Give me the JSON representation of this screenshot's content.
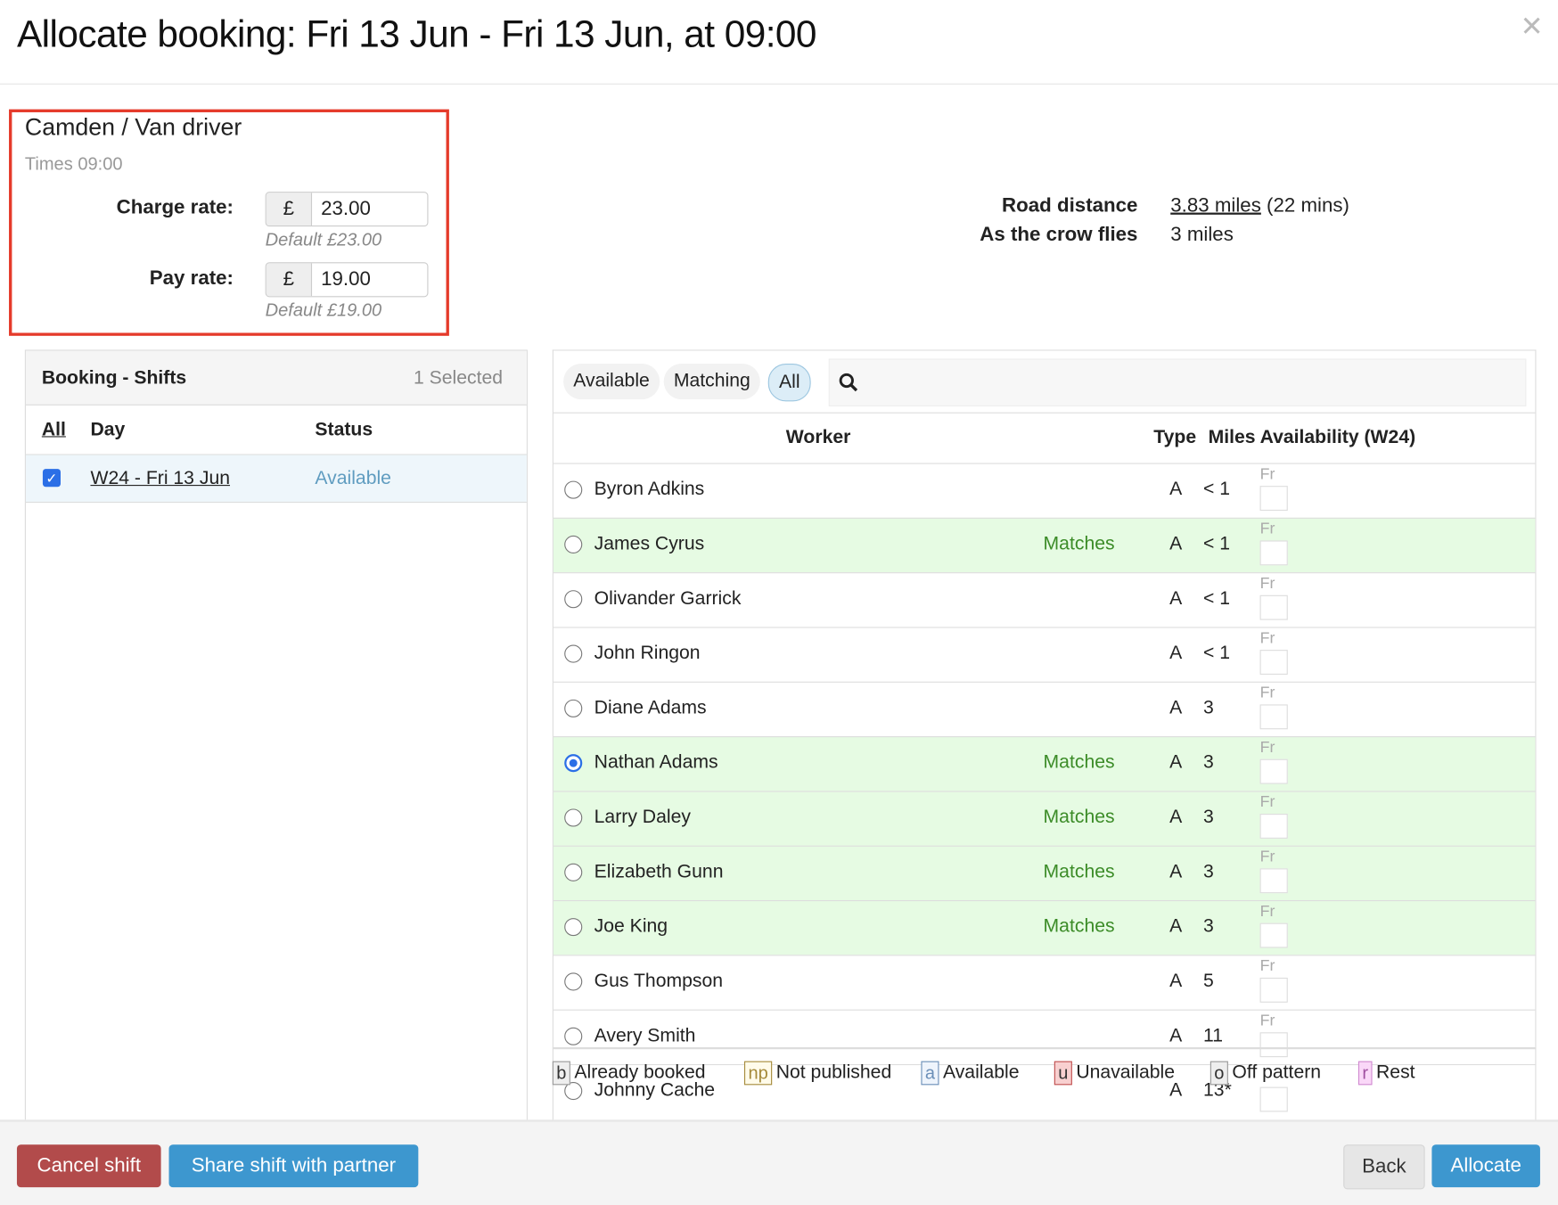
{
  "title": "Allocate booking: Fri 13 Jun - Fri 13 Jun, at 09:00",
  "close_icon": "times-icon",
  "job": {
    "name": "Camden / Van driver",
    "times": "Times 09:00",
    "charge": {
      "label": "Charge rate:",
      "currency": "£",
      "value": "23.00",
      "default": "Default £23.00"
    },
    "pay": {
      "label": "Pay rate:",
      "currency": "£",
      "value": "19.00",
      "default": "Default £19.00"
    }
  },
  "distance": {
    "road_label": "Road distance",
    "road_value": "3.83 miles",
    "road_time": "(22 mins)",
    "crow_label": "As the crow flies",
    "crow_value": "3 miles"
  },
  "shifts": {
    "title": "Booking - Shifts",
    "selected": "1 Selected",
    "col_all": "All",
    "col_day": "Day",
    "col_status": "Status",
    "rows": [
      {
        "day": "W24 - Fri 13 Jun",
        "status": "Available",
        "checked": true
      }
    ]
  },
  "filters": {
    "available": "Available",
    "matching": "Matching",
    "all": "All",
    "active": "All",
    "search_placeholder": "",
    "search_icon": "search-icon"
  },
  "workers_table": {
    "col_worker": "Worker",
    "col_type": "Type",
    "col_miles": "Miles",
    "col_availability": "Availability (W24)",
    "rows": [
      {
        "name": "Byron Adkins",
        "match": "",
        "type": "A",
        "miles": "< 1",
        "day": "Fr",
        "selected": false
      },
      {
        "name": "James Cyrus",
        "match": "Matches",
        "type": "A",
        "miles": "< 1",
        "day": "Fr",
        "selected": false
      },
      {
        "name": "Olivander Garrick",
        "match": "",
        "type": "A",
        "miles": "< 1",
        "day": "Fr",
        "selected": false
      },
      {
        "name": "John Ringon",
        "match": "",
        "type": "A",
        "miles": "< 1",
        "day": "Fr",
        "selected": false
      },
      {
        "name": "Diane Adams",
        "match": "",
        "type": "A",
        "miles": "3",
        "day": "Fr",
        "selected": false
      },
      {
        "name": "Nathan Adams",
        "match": "Matches",
        "type": "A",
        "miles": "3",
        "day": "Fr",
        "selected": true
      },
      {
        "name": "Larry Daley",
        "match": "Matches",
        "type": "A",
        "miles": "3",
        "day": "Fr",
        "selected": false
      },
      {
        "name": "Elizabeth Gunn",
        "match": "Matches",
        "type": "A",
        "miles": "3",
        "day": "Fr",
        "selected": false
      },
      {
        "name": "Joe King",
        "match": "Matches",
        "type": "A",
        "miles": "3",
        "day": "Fr",
        "selected": false
      },
      {
        "name": "Gus Thompson",
        "match": "",
        "type": "A",
        "miles": "5",
        "day": "Fr",
        "selected": false
      },
      {
        "name": "Avery Smith",
        "match": "",
        "type": "A",
        "miles": "11",
        "day": "Fr",
        "selected": false
      },
      {
        "name": "Johnny Cache",
        "match": "",
        "type": "A",
        "miles": "13*",
        "day": "",
        "selected": false
      }
    ]
  },
  "legend": [
    {
      "code": "b",
      "label": "Already booked",
      "bg": "#eeeeee",
      "border": "#999999",
      "color": "#333333"
    },
    {
      "code": "np",
      "label": "Not published",
      "bg": "#fffbea",
      "border": "#a58a3a",
      "color": "#a58a3a"
    },
    {
      "code": "a",
      "label": "Available",
      "bg": "#eef4fc",
      "border": "#6b8fb8",
      "color": "#6b8fb8"
    },
    {
      "code": "u",
      "label": "Unavailable",
      "bg": "#f8d0d0",
      "border": "#c05050",
      "color": "#333333"
    },
    {
      "code": "o",
      "label": "Off pattern",
      "bg": "#eeeeee",
      "border": "#999999",
      "color": "#333333"
    },
    {
      "code": "r",
      "label": "Rest",
      "bg": "#fad8f8",
      "border": "#d08ad0",
      "color": "#a050a0"
    }
  ],
  "footer": {
    "cancel": "Cancel shift",
    "share": "Share shift with partner",
    "back": "Back",
    "allocate": "Allocate"
  },
  "colors": {
    "primary": "#3d97cf",
    "danger": "#b24b4b",
    "match_green": "#3c8c28",
    "match_row": "#e6fbe3",
    "highlight_box": "#e53a2a"
  }
}
